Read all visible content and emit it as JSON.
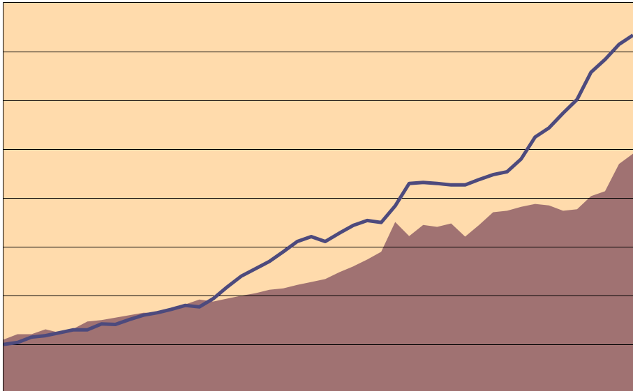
{
  "chart_data": {
    "type": "area",
    "x": [
      0,
      1,
      2,
      3,
      4,
      5,
      6,
      7,
      8,
      9,
      10,
      11,
      12,
      13,
      14,
      15,
      16,
      17,
      18,
      19,
      20,
      21,
      22,
      23,
      24,
      25,
      26,
      27,
      28,
      29,
      30,
      31,
      32,
      33,
      34,
      35,
      36,
      37,
      38,
      39,
      40,
      41,
      42,
      43,
      44,
      45
    ],
    "xlim": [
      0,
      45
    ],
    "ylim": [
      0,
      8
    ],
    "yticks": [
      1,
      2,
      3,
      4,
      5,
      6,
      7
    ],
    "grid": true,
    "background": "#ffdbac",
    "series": [
      {
        "type": "area",
        "color": "#a07272",
        "values": [
          1.09,
          1.2,
          1.2,
          1.3,
          1.23,
          1.31,
          1.46,
          1.49,
          1.54,
          1.59,
          1.64,
          1.64,
          1.73,
          1.81,
          1.91,
          1.87,
          1.93,
          1.99,
          2.04,
          2.11,
          2.14,
          2.21,
          2.27,
          2.33,
          2.47,
          2.59,
          2.73,
          2.89,
          3.5,
          3.21,
          3.44,
          3.4,
          3.47,
          3.2,
          3.44,
          3.7,
          3.73,
          3.81,
          3.87,
          3.84,
          3.73,
          3.76,
          4.03,
          4.13,
          4.69,
          4.9
        ]
      },
      {
        "type": "line",
        "color": "#4d4a7d",
        "values": [
          0.99,
          1.03,
          1.14,
          1.17,
          1.23,
          1.29,
          1.29,
          1.41,
          1.4,
          1.5,
          1.59,
          1.64,
          1.71,
          1.79,
          1.76,
          1.93,
          2.17,
          2.39,
          2.54,
          2.69,
          2.89,
          3.1,
          3.2,
          3.1,
          3.27,
          3.43,
          3.53,
          3.49,
          3.83,
          4.29,
          4.31,
          4.29,
          4.26,
          4.26,
          4.37,
          4.47,
          4.53,
          4.79,
          5.24,
          5.43,
          5.73,
          6.01,
          6.57,
          6.83,
          7.14,
          7.33
        ]
      }
    ]
  }
}
